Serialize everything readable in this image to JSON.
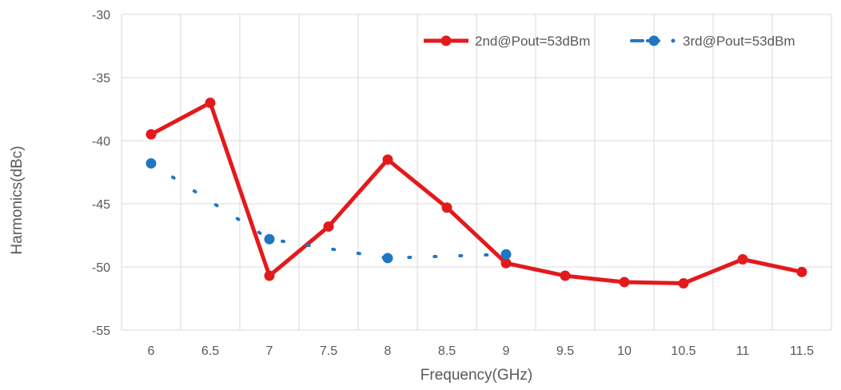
{
  "chart_data": {
    "type": "line",
    "xlabel": "Frequency(GHz)",
    "ylabel": "Harmonics(dBc)",
    "ylim": [
      -55,
      -30
    ],
    "ytick_step": 5,
    "grid": true,
    "legend_position": "top-right",
    "categories": [
      "6",
      "6.5",
      "7",
      "7.5",
      "8",
      "8.5",
      "9",
      "9.5",
      "10",
      "10.5",
      "11",
      "11.5"
    ],
    "series": [
      {
        "name": "2nd@Pout=53dBm",
        "color": "#e31a1c",
        "style": "solid",
        "values": [
          -39.5,
          -37.0,
          -50.7,
          -46.8,
          -41.5,
          -45.3,
          -49.7,
          -50.7,
          -51.2,
          -51.3,
          -49.4,
          -50.4
        ]
      },
      {
        "name": "3rd@Pout=53dBm",
        "color": "#1f77c4",
        "style": "dotted",
        "values": [
          -41.8,
          null,
          -47.8,
          null,
          -49.3,
          null,
          -49.0,
          null,
          null,
          null,
          null,
          null
        ]
      }
    ]
  }
}
